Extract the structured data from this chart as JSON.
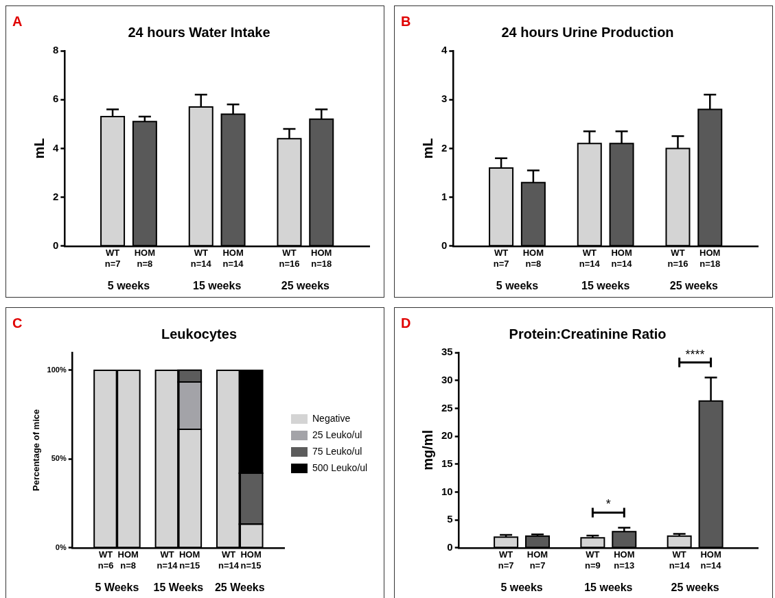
{
  "chart_data": [
    {
      "type": "bar",
      "title": "24 hours Water Intake",
      "ylabel": "mL",
      "categories": [
        "WT\nn=7",
        "HOM\nn=8",
        "WT\nn=14",
        "HOM\nn=14",
        "WT\nn=16",
        "HOM\nn=18"
      ],
      "values": [
        5.3,
        5.1,
        5.7,
        5.4,
        4.4,
        5.2
      ],
      "errors": [
        0.3,
        0.2,
        0.5,
        0.4,
        0.4,
        0.4
      ],
      "colors": [
        "#d4d4d4",
        "#595959",
        "#d4d4d4",
        "#595959",
        "#d4d4d4",
        "#595959"
      ],
      "ylim": [
        0,
        8
      ],
      "yticks": [
        0,
        2,
        4,
        6,
        8
      ],
      "grid": false,
      "annotations": [
        "A",
        "5 weeks",
        "15 weeks",
        "25 weeks"
      ]
    },
    {
      "type": "bar",
      "title": "24 hours Urine Production",
      "ylabel": "mL",
      "categories": [
        "WT\nn=7",
        "HOM\nn=8",
        "WT\nn=14",
        "HOM\nn=14",
        "WT\nn=16",
        "HOM\nn=18"
      ],
      "values": [
        1.6,
        1.3,
        2.1,
        2.1,
        2.0,
        2.8
      ],
      "errors": [
        0.2,
        0.25,
        0.25,
        0.25,
        0.25,
        0.3
      ],
      "colors": [
        "#d4d4d4",
        "#595959",
        "#d4d4d4",
        "#595959",
        "#d4d4d4",
        "#595959"
      ],
      "ylim": [
        0,
        4
      ],
      "yticks": [
        0,
        1,
        2,
        3,
        4
      ],
      "grid": false,
      "annotations": [
        "B",
        "5 weeks",
        "15 weeks",
        "25 weeks"
      ]
    },
    {
      "type": "bar",
      "title": "Leukocytes",
      "ylabel": "Percentage of mice",
      "stacked": true,
      "legend": "right",
      "categories": [
        "WT\nn=6",
        "HOM\nn=8",
        "WT\nn=14",
        "HOM\nn=15",
        "WT\nn=14",
        "HOM\nn=15"
      ],
      "series": [
        {
          "name": "Negative",
          "color": "#d4d4d4",
          "values": [
            100,
            100,
            100,
            66.7,
            100,
            13.3
          ]
        },
        {
          "name": "25 Leuko/ul",
          "color": "#a3a3a8",
          "values": [
            0,
            0,
            0,
            26.7,
            0,
            0
          ]
        },
        {
          "name": "75 Leuko/ul",
          "color": "#5c5c5c",
          "values": [
            0,
            0,
            0,
            6.7,
            0,
            28.7
          ]
        },
        {
          "name": "500 Leuko/ul",
          "color": "#000000",
          "values": [
            0,
            0,
            0,
            0,
            0,
            58
          ]
        }
      ],
      "ylim": [
        0,
        110
      ],
      "yticks": [
        {
          "value": 0,
          "label": "0%"
        },
        {
          "value": 50,
          "label": "50%"
        },
        {
          "value": 100,
          "label": "100%"
        }
      ],
      "grid": false,
      "annotations": [
        "C",
        "5 Weeks",
        "15 Weeks",
        "25 Weeks"
      ]
    },
    {
      "type": "bar",
      "title": "Protein:Creatinine Ratio",
      "ylabel": "mg/ml",
      "categories": [
        "WT\nn=7",
        "HOM\nn=7",
        "WT\nn=9",
        "HOM\nn=13",
        "WT\nn=14",
        "HOM\nn=14"
      ],
      "values": [
        1.9,
        2.1,
        1.8,
        2.9,
        2.1,
        26.3
      ],
      "errors": [
        0.4,
        0.3,
        0.4,
        0.7,
        0.4,
        4.2
      ],
      "colors": [
        "#d4d4d4",
        "#595959",
        "#d4d4d4",
        "#595959",
        "#d4d4d4",
        "#595959"
      ],
      "ylim": [
        0,
        35
      ],
      "yticks": [
        0,
        5,
        10,
        15,
        20,
        25,
        30,
        35
      ],
      "grid": false,
      "annotations": [
        "D",
        "5 weeks",
        "15 weeks",
        "25 weeks",
        "*",
        "****"
      ]
    }
  ]
}
